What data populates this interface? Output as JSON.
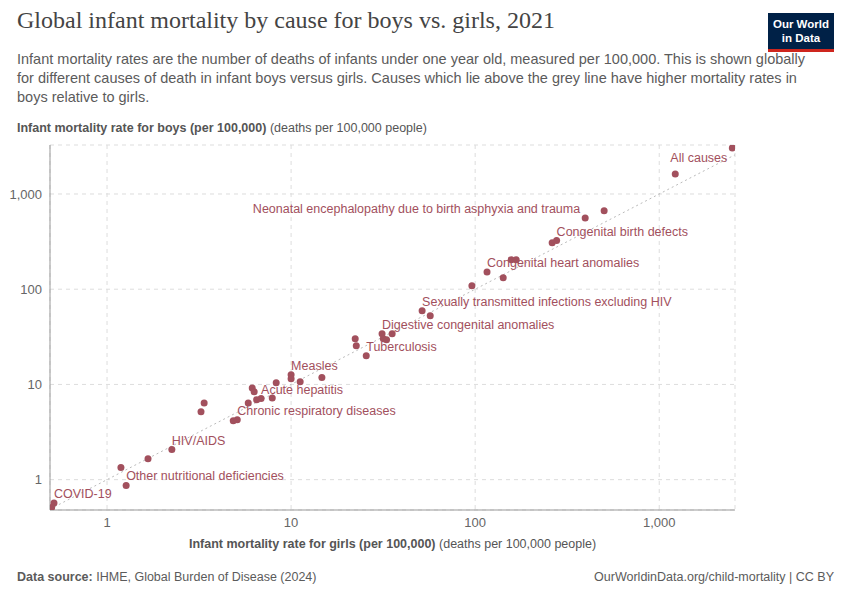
{
  "chart_data": {
    "type": "scatter",
    "title": "Global infant mortality by cause for boys vs. girls, 2021",
    "subtitle": "Infant mortality rates are the number of deaths of infants under one year old, measured per 100,000. This is shown globally for different causes of death in infant boys versus girls. Causes which lie above the grey line have higher mortality rates in boys relative to girls.",
    "ylabel": "Infant mortality rate for boys (per 100,000)",
    "ylabel_unit": "(deaths per 100,000 people)",
    "xlabel": "Infant mortality rate for girls (per 100,000)",
    "xlabel_unit": "(deaths per 100,000 people)",
    "source_label": "Data source:",
    "source": "IHME, Global Burden of Disease (2024)",
    "url": "OurWorldinData.org/child-mortality | CC BY",
    "logo": [
      "Our World",
      "in Data"
    ],
    "color": "#a2505d",
    "log": true,
    "grid": true,
    "xlim": [
      0.49,
      2580
    ],
    "ylim": [
      0.48,
      3270
    ],
    "xticks": [
      1,
      10,
      100,
      {
        "value": 1000,
        "label": "1,000"
      }
    ],
    "yticks": [
      1,
      10,
      100,
      {
        "value": 1000,
        "label": "1,000"
      }
    ],
    "x": [
      2495,
      1222,
      502,
      396,
      262,
      277,
      157,
      167,
      116,
      142,
      96,
      51.5,
      57,
      31.2,
      35.4,
      31.7,
      33,
      22.3,
      22.6,
      25.6,
      10,
      10,
      14.7,
      11.2,
      8.3,
      6.15,
      6.3,
      6.87,
      6.5,
      7.9,
      5.85,
      5.1,
      4.85,
      3.37,
      3.24,
      2.25,
      1.67,
      1.19,
      1.27,
      0.515,
      0.5
    ],
    "values": [
      3050,
      1625,
      665,
      561,
      307,
      324,
      204,
      204,
      152,
      132,
      109,
      59.3,
      52.6,
      34,
      34,
      30.2,
      29.5,
      30.2,
      25.5,
      20,
      12.6,
      11.5,
      11.8,
      10.7,
      10.4,
      9.2,
      8.4,
      7.1,
      6.9,
      7.2,
      6.4,
      4.26,
      4.16,
      6.4,
      5.17,
      2.07,
      1.66,
      1.34,
      0.87,
      0.57,
      0.51
    ],
    "point_labels": [
      "All causes",
      null,
      null,
      "Neonatal encephalopathy due to birth asphyxia and trauma",
      null,
      "Congenital birth defects",
      null,
      null,
      "Congenital heart anomalies",
      null,
      null,
      "Sexually transmitted infections excluding HIV",
      null,
      "Digestive congenital anomalies",
      null,
      null,
      null,
      null,
      null,
      "Tuberculosis",
      "Measles",
      null,
      null,
      null,
      null,
      null,
      null,
      "Acute hepatitis",
      null,
      null,
      null,
      "Chronic respiratory diseases",
      null,
      null,
      null,
      "HIV/AIDS",
      null,
      null,
      "Other nutritional deficiencies",
      "COVID-19",
      null
    ]
  }
}
